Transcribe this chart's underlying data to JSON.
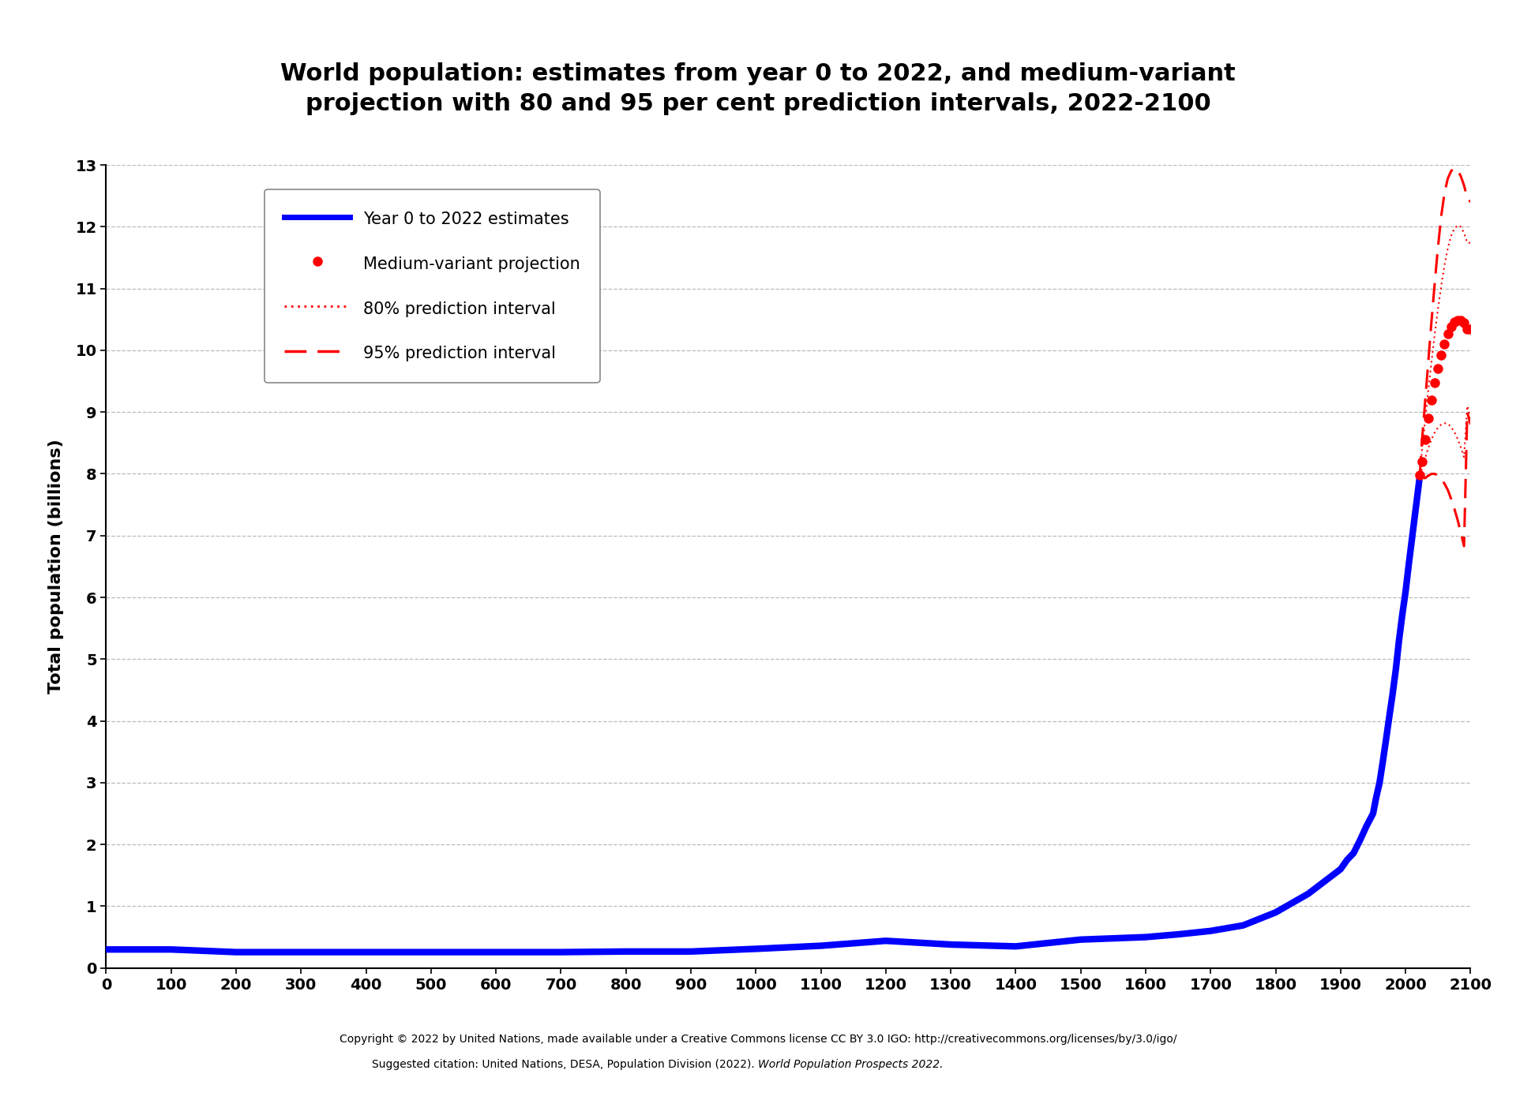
{
  "title": "World population: estimates from year 0 to 2022, and medium-variant\nprojection with 80 and 95 per cent prediction intervals, 2022-2100",
  "ylabel": "Total population (billions)",
  "xlim": [
    0,
    2100
  ],
  "ylim": [
    0,
    13
  ],
  "xticks": [
    0,
    100,
    200,
    300,
    400,
    500,
    600,
    700,
    800,
    900,
    1000,
    1100,
    1200,
    1300,
    1400,
    1500,
    1600,
    1700,
    1800,
    1900,
    2000,
    2100
  ],
  "yticks": [
    0,
    1,
    2,
    3,
    4,
    5,
    6,
    7,
    8,
    9,
    10,
    11,
    12,
    13
  ],
  "bg_color": "#ffffff",
  "line_color": "#0000ff",
  "proj_color": "#ff0000",
  "grid_color": "#bbbbbb",
  "title_fontsize": 22,
  "axis_label_fontsize": 16,
  "tick_fontsize": 14,
  "footer_line1": "Copyright © 2022 by United Nations, made available under a Creative Commons license CC BY 3.0 IGO: http://creativecommons.org/licenses/by/3.0/igo/",
  "footer_line2_normal": "Suggested citation: United Nations, DESA, Population Division (2022). ",
  "footer_line2_italic": "World Population Prospects 2022.",
  "historical_years": [
    0,
    100,
    200,
    300,
    400,
    500,
    600,
    700,
    800,
    900,
    1000,
    1100,
    1200,
    1300,
    1400,
    1500,
    1600,
    1650,
    1700,
    1750,
    1800,
    1850,
    1900,
    1910,
    1920,
    1930,
    1940,
    1950,
    1955,
    1960,
    1965,
    1970,
    1975,
    1980,
    1985,
    1990,
    1995,
    2000,
    2005,
    2010,
    2015,
    2020,
    2022
  ],
  "historical_pop": [
    0.3,
    0.3,
    0.257,
    0.257,
    0.257,
    0.257,
    0.257,
    0.257,
    0.267,
    0.267,
    0.31,
    0.36,
    0.44,
    0.38,
    0.35,
    0.46,
    0.5,
    0.545,
    0.6,
    0.69,
    0.9,
    1.2,
    1.6,
    1.75,
    1.86,
    2.07,
    2.3,
    2.5,
    2.77,
    3.0,
    3.34,
    3.7,
    4.07,
    4.43,
    4.83,
    5.31,
    5.72,
    6.09,
    6.54,
    6.96,
    7.38,
    7.8,
    7.975
  ],
  "medium_years": [
    2022,
    2025,
    2030,
    2035,
    2040,
    2045,
    2050,
    2055,
    2060,
    2065,
    2070,
    2075,
    2080,
    2085,
    2090,
    2095,
    2100
  ],
  "medium_pop": [
    7.975,
    8.2,
    8.55,
    8.9,
    9.19,
    9.47,
    9.71,
    9.92,
    10.1,
    10.27,
    10.38,
    10.46,
    10.49,
    10.49,
    10.44,
    10.35,
    10.35
  ],
  "p80_high_years": [
    2022,
    2025,
    2030,
    2035,
    2040,
    2045,
    2050,
    2055,
    2060,
    2065,
    2070,
    2075,
    2080,
    2085,
    2090,
    2095,
    2100
  ],
  "p80_high_pop": [
    7.975,
    8.35,
    8.85,
    9.35,
    9.82,
    10.27,
    10.68,
    11.05,
    11.38,
    11.65,
    11.85,
    11.97,
    12.02,
    12.0,
    11.9,
    11.74,
    11.74
  ],
  "p80_low_years": [
    2022,
    2025,
    2030,
    2035,
    2040,
    2045,
    2050,
    2055,
    2060,
    2065,
    2070,
    2075,
    2080,
    2085,
    2090,
    2095,
    2100
  ],
  "p80_low_pop": [
    7.975,
    8.07,
    8.25,
    8.42,
    8.56,
    8.67,
    8.75,
    8.8,
    8.82,
    8.81,
    8.76,
    8.68,
    8.57,
    8.43,
    8.27,
    9.1,
    8.9
  ],
  "p95_high_years": [
    2022,
    2025,
    2030,
    2035,
    2040,
    2045,
    2050,
    2055,
    2060,
    2065,
    2070,
    2075,
    2080,
    2085,
    2090,
    2095,
    2100
  ],
  "p95_high_pop": [
    7.975,
    8.5,
    9.15,
    9.82,
    10.48,
    11.1,
    11.68,
    12.18,
    12.55,
    12.78,
    12.9,
    12.95,
    12.92,
    12.82,
    12.67,
    12.47,
    12.4
  ],
  "p95_low_years": [
    2022,
    2025,
    2030,
    2035,
    2040,
    2045,
    2050,
    2055,
    2060,
    2065,
    2070,
    2075,
    2080,
    2085,
    2090,
    2095,
    2100
  ],
  "p95_low_pop": [
    7.975,
    7.95,
    7.93,
    7.97,
    8.0,
    8.0,
    7.97,
    7.92,
    7.84,
    7.74,
    7.6,
    7.44,
    7.26,
    7.05,
    6.83,
    9.0,
    8.8
  ]
}
